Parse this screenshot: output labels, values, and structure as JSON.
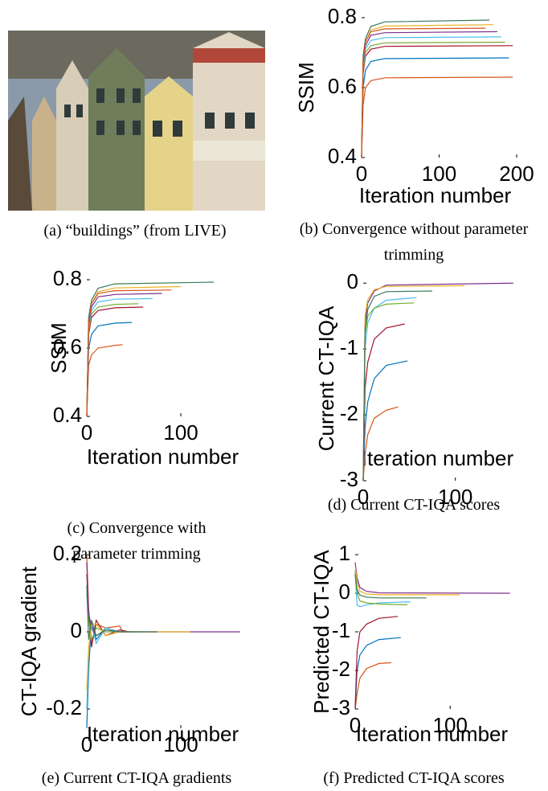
{
  "figure": {
    "image_caption": "(a) “buildings” (from LIVE)"
  },
  "chart_data": [
    {
      "type": "line",
      "caption": "(b) Convergence without parameter trimming",
      "xlabel": "Iteration number",
      "ylabel": "SSIM",
      "xlim": [
        0,
        200
      ],
      "ylim": [
        0.4,
        0.8
      ],
      "xticks": [
        0,
        100,
        200
      ],
      "yticks": [
        0.4,
        0.6,
        0.8
      ],
      "series": [
        {
          "color": "#D95319",
          "x": [
            0,
            2,
            5,
            12,
            30,
            195
          ],
          "values": [
            0.4,
            0.55,
            0.6,
            0.62,
            0.628,
            0.63
          ]
        },
        {
          "color": "#0072BD",
          "x": [
            0,
            2,
            5,
            12,
            30,
            190
          ],
          "values": [
            0.4,
            0.6,
            0.65,
            0.675,
            0.683,
            0.685
          ]
        },
        {
          "color": "#A2142F",
          "x": [
            0,
            2,
            5,
            12,
            30,
            195
          ],
          "values": [
            0.4,
            0.64,
            0.69,
            0.71,
            0.718,
            0.72
          ]
        },
        {
          "color": "#77AC30",
          "x": [
            0,
            2,
            5,
            12,
            30,
            185
          ],
          "values": [
            0.4,
            0.65,
            0.7,
            0.72,
            0.728,
            0.73
          ]
        },
        {
          "color": "#4DBEEE",
          "x": [
            0,
            2,
            5,
            12,
            30,
            180
          ],
          "values": [
            0.4,
            0.66,
            0.71,
            0.735,
            0.743,
            0.745
          ]
        },
        {
          "color": "#7E2F8E",
          "x": [
            0,
            2,
            5,
            12,
            30,
            175
          ],
          "values": [
            0.4,
            0.67,
            0.72,
            0.75,
            0.757,
            0.76
          ]
        },
        {
          "color": "#EDB120",
          "x": [
            0,
            2,
            5,
            12,
            30,
            170
          ],
          "values": [
            0.4,
            0.68,
            0.73,
            0.765,
            0.776,
            0.78
          ]
        },
        {
          "color": "#3B7A57",
          "x": [
            0,
            2,
            5,
            12,
            30,
            165
          ],
          "values": [
            0.4,
            0.69,
            0.74,
            0.775,
            0.788,
            0.793
          ]
        },
        {
          "color": "#D95319",
          "x": [
            0,
            2,
            5,
            12,
            30,
            160
          ],
          "values": [
            0.4,
            0.68,
            0.73,
            0.76,
            0.768,
            0.77
          ]
        }
      ]
    },
    {
      "type": "line",
      "caption": "(c) Convergence with parameter trimming",
      "xlabel": "Iteration number",
      "ylabel": "SSIM",
      "xlim": [
        0,
        170
      ],
      "ylim": [
        0.4,
        0.8
      ],
      "xticks": [
        0,
        100
      ],
      "yticks": [
        0.4,
        0.6,
        0.8
      ],
      "series": [
        {
          "color": "#D95319",
          "x": [
            0,
            2,
            5,
            12,
            30,
            38
          ],
          "values": [
            0.4,
            0.55,
            0.58,
            0.6,
            0.608,
            0.61
          ]
        },
        {
          "color": "#0072BD",
          "x": [
            0,
            2,
            5,
            12,
            30,
            48
          ],
          "values": [
            0.4,
            0.6,
            0.64,
            0.665,
            0.673,
            0.675
          ]
        },
        {
          "color": "#A2142F",
          "x": [
            0,
            2,
            5,
            12,
            30,
            60
          ],
          "values": [
            0.4,
            0.64,
            0.69,
            0.71,
            0.718,
            0.72
          ]
        },
        {
          "color": "#77AC30",
          "x": [
            0,
            2,
            5,
            12,
            30,
            55
          ],
          "values": [
            0.4,
            0.65,
            0.7,
            0.72,
            0.728,
            0.73
          ]
        },
        {
          "color": "#4DBEEE",
          "x": [
            0,
            2,
            5,
            12,
            30,
            70
          ],
          "values": [
            0.4,
            0.66,
            0.71,
            0.735,
            0.743,
            0.745
          ]
        },
        {
          "color": "#7E2F8E",
          "x": [
            0,
            2,
            5,
            12,
            30,
            80
          ],
          "values": [
            0.4,
            0.67,
            0.72,
            0.75,
            0.757,
            0.76
          ]
        },
        {
          "color": "#EDB120",
          "x": [
            0,
            2,
            5,
            12,
            30,
            100
          ],
          "values": [
            0.4,
            0.68,
            0.73,
            0.765,
            0.776,
            0.78
          ]
        },
        {
          "color": "#3B7A57",
          "x": [
            0,
            2,
            5,
            12,
            30,
            135
          ],
          "values": [
            0.4,
            0.69,
            0.74,
            0.775,
            0.788,
            0.793
          ]
        },
        {
          "color": "#D95319",
          "x": [
            0,
            2,
            5,
            12,
            30,
            90
          ],
          "values": [
            0.4,
            0.68,
            0.73,
            0.76,
            0.768,
            0.77
          ]
        }
      ]
    },
    {
      "type": "line",
      "caption": "(d) Current CT-IQA scores",
      "xlabel": "Iteration number",
      "ylabel": "Current CT-IQA",
      "xlim": [
        0,
        170
      ],
      "ylim": [
        -3,
        0.1
      ],
      "xticks": [
        0,
        100
      ],
      "yticks": [
        -3,
        -2,
        -1,
        0
      ],
      "series": [
        {
          "color": "#D95319",
          "x": [
            0,
            2,
            5,
            12,
            25,
            38
          ],
          "values": [
            -3,
            -2.6,
            -2.3,
            -2.05,
            -1.93,
            -1.88
          ]
        },
        {
          "color": "#0072BD",
          "x": [
            0,
            2,
            5,
            12,
            25,
            48
          ],
          "values": [
            -3,
            -2.2,
            -1.8,
            -1.45,
            -1.25,
            -1.18
          ]
        },
        {
          "color": "#A2142F",
          "x": [
            0,
            2,
            5,
            12,
            25,
            45
          ],
          "values": [
            -3,
            -1.6,
            -1.2,
            -0.85,
            -0.68,
            -0.62
          ]
        },
        {
          "color": "#4DBEEE",
          "x": [
            0,
            2,
            5,
            12,
            25,
            58
          ],
          "values": [
            -3,
            -1,
            -0.6,
            -0.38,
            -0.26,
            -0.22
          ]
        },
        {
          "color": "#77AC30",
          "x": [
            0,
            2,
            5,
            12,
            25,
            55
          ],
          "values": [
            -3,
            -0.8,
            -0.5,
            -0.38,
            -0.32,
            -0.3
          ]
        },
        {
          "color": "#7E2F8E",
          "x": [
            0,
            2,
            5,
            12,
            25,
            163
          ],
          "values": [
            -3,
            -0.6,
            -0.3,
            -0.12,
            -0.03,
            0
          ]
        },
        {
          "color": "#EDB120",
          "x": [
            0,
            2,
            5,
            12,
            25,
            110
          ],
          "values": [
            -3,
            -0.5,
            -0.25,
            -0.1,
            -0.05,
            -0.04
          ]
        },
        {
          "color": "#3B7A57",
          "x": [
            0,
            2,
            5,
            12,
            25,
            75
          ],
          "values": [
            -3,
            -0.7,
            -0.4,
            -0.2,
            -0.13,
            -0.12
          ]
        }
      ]
    },
    {
      "type": "line",
      "caption": "(e) Current CT-IQA gradients",
      "xlabel": "Iteration number",
      "ylabel": "CT-IQA gradient",
      "xlim": [
        0,
        170
      ],
      "ylim": [
        -0.25,
        0.2
      ],
      "xticks": [
        0,
        100
      ],
      "yticks": [
        -0.2,
        0,
        0.2
      ],
      "series": [
        {
          "color": "#D95319",
          "x": [
            0,
            2,
            5,
            10,
            20,
            35,
            38
          ],
          "values": [
            0.2,
            0.06,
            -0.03,
            0.02,
            0.01,
            0.015,
            0
          ]
        },
        {
          "color": "#0072BD",
          "x": [
            0,
            2,
            5,
            10,
            20,
            35,
            48
          ],
          "values": [
            -0.25,
            -0.1,
            0.03,
            -0.02,
            0.01,
            0,
            0
          ]
        },
        {
          "color": "#A2142F",
          "x": [
            0,
            2,
            5,
            10,
            20,
            35,
            45
          ],
          "values": [
            0.15,
            0.04,
            -0.04,
            0.03,
            -0.01,
            0.005,
            0
          ]
        },
        {
          "color": "#4DBEEE",
          "x": [
            0,
            2,
            5,
            10,
            20,
            35,
            58
          ],
          "values": [
            -0.2,
            -0.05,
            0.02,
            -0.03,
            0.01,
            0,
            0
          ]
        },
        {
          "color": "#77AC30",
          "x": [
            0,
            2,
            5,
            10,
            20,
            35,
            55
          ],
          "values": [
            0.1,
            0.03,
            -0.02,
            0.01,
            0,
            0,
            0
          ]
        },
        {
          "color": "#7E2F8E",
          "x": [
            0,
            2,
            5,
            10,
            20,
            35,
            163
          ],
          "values": [
            0.18,
            0.05,
            0.01,
            -0.01,
            0.005,
            0,
            0
          ]
        },
        {
          "color": "#EDB120",
          "x": [
            0,
            2,
            5,
            10,
            20,
            35,
            110
          ],
          "values": [
            -0.15,
            -0.04,
            0.02,
            0.02,
            -0.01,
            0,
            0
          ]
        },
        {
          "color": "#3B7A57",
          "x": [
            0,
            2,
            5,
            10,
            20,
            35,
            75
          ],
          "values": [
            0.12,
            -0.02,
            0.03,
            -0.01,
            0.005,
            0,
            0
          ]
        }
      ]
    },
    {
      "type": "line",
      "caption": "(f) Predicted CT-IQA scores",
      "xlabel": "Iteration number",
      "ylabel": "Predicted CT-IQA",
      "xlim": [
        0,
        170
      ],
      "ylim": [
        -3,
        1
      ],
      "xticks": [
        0,
        100
      ],
      "yticks": [
        -3,
        -2,
        -1,
        0,
        1
      ],
      "series": [
        {
          "color": "#D95319",
          "x": [
            0,
            2,
            5,
            12,
            25,
            38
          ],
          "values": [
            -3,
            -2.6,
            -2.2,
            -1.95,
            -1.82,
            -1.8
          ]
        },
        {
          "color": "#0072BD",
          "x": [
            0,
            2,
            5,
            12,
            25,
            48
          ],
          "values": [
            -3,
            -2,
            -1.6,
            -1.35,
            -1.2,
            -1.15
          ]
        },
        {
          "color": "#A2142F",
          "x": [
            0,
            2,
            5,
            12,
            25,
            45
          ],
          "values": [
            -3,
            -1.5,
            -1,
            -0.8,
            -0.65,
            -0.6
          ]
        },
        {
          "color": "#4DBEEE",
          "x": [
            0,
            2,
            5,
            12,
            25,
            58
          ],
          "values": [
            0.5,
            -0.3,
            -0.35,
            -0.3,
            -0.25,
            -0.22
          ]
        },
        {
          "color": "#77AC30",
          "x": [
            0,
            2,
            5,
            12,
            25,
            55
          ],
          "values": [
            0.6,
            0,
            -0.2,
            -0.25,
            -0.28,
            -0.3
          ]
        },
        {
          "color": "#7E2F8E",
          "x": [
            0,
            2,
            5,
            12,
            25,
            163
          ],
          "values": [
            0.8,
            0.4,
            0.15,
            0.05,
            0.01,
            0
          ]
        },
        {
          "color": "#EDB120",
          "x": [
            0,
            2,
            5,
            12,
            25,
            110
          ],
          "values": [
            0.7,
            0.3,
            0.05,
            -0.02,
            -0.04,
            -0.04
          ]
        },
        {
          "color": "#3B7A57",
          "x": [
            0,
            2,
            5,
            12,
            25,
            75
          ],
          "values": [
            0.5,
            0.1,
            -0.05,
            -0.1,
            -0.12,
            -0.12
          ]
        }
      ]
    }
  ]
}
